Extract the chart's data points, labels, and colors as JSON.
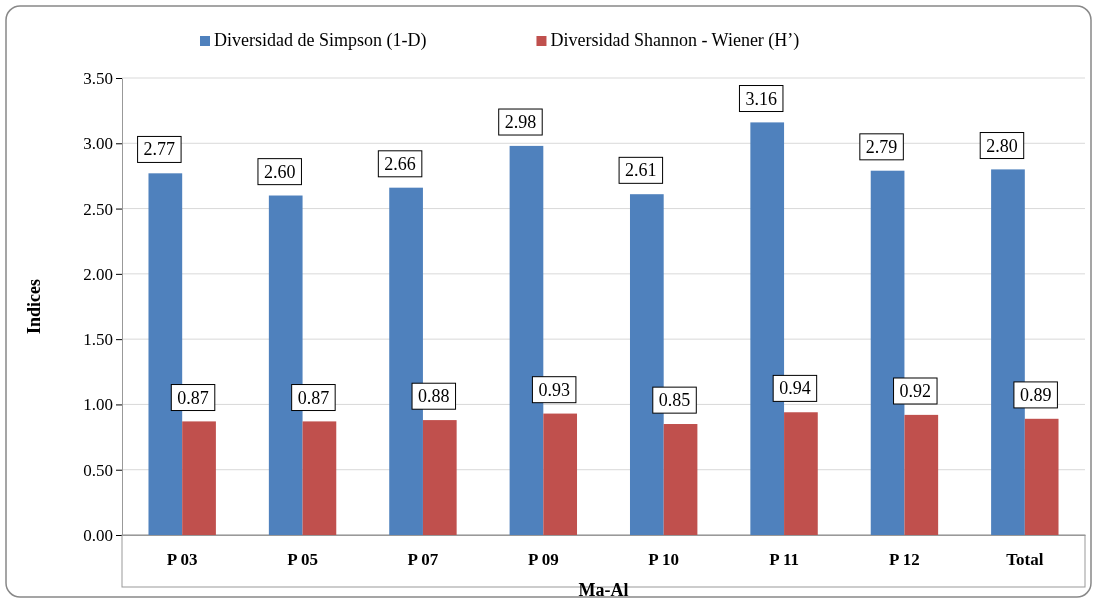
{
  "chart_data": {
    "type": "bar",
    "xlabel": "Ma-Al",
    "ylabel": "Indices",
    "categories": [
      "P 03",
      "P 05",
      "P 07",
      "P 09",
      "P 10",
      "P 11",
      "P 12",
      "Total"
    ],
    "series": [
      {
        "name": "Diversidad de Simpson (1-D)",
        "color": "#4f81bd",
        "values": [
          2.77,
          2.6,
          2.66,
          2.98,
          2.61,
          3.16,
          2.79,
          2.8
        ],
        "value_labels": [
          "2.77",
          "2.60",
          "2.66",
          "2.98",
          "2.61",
          "3.16",
          "2.79",
          "2.80"
        ]
      },
      {
        "name": "Diversidad Shannon - Wiener (H’)",
        "color": "#c0504d",
        "values": [
          0.87,
          0.87,
          0.88,
          0.93,
          0.85,
          0.94,
          0.92,
          0.89
        ],
        "value_labels": [
          "0.87",
          "0.87",
          "0.88",
          "0.93",
          "0.85",
          "0.94",
          "0.92",
          "0.89"
        ]
      }
    ],
    "ylim": [
      0,
      3.5
    ],
    "yticks": [
      {
        "value": 0,
        "label": "0.00"
      },
      {
        "value": 0.5,
        "label": "0.50"
      },
      {
        "value": 1,
        "label": "1.00"
      },
      {
        "value": 1.5,
        "label": "1.50"
      },
      {
        "value": 2,
        "label": "2.00"
      },
      {
        "value": 2.5,
        "label": "2.50"
      },
      {
        "value": 3,
        "label": "3.00"
      },
      {
        "value": 3.5,
        "label": "3.50"
      }
    ],
    "grid": "y",
    "legend": "top"
  }
}
